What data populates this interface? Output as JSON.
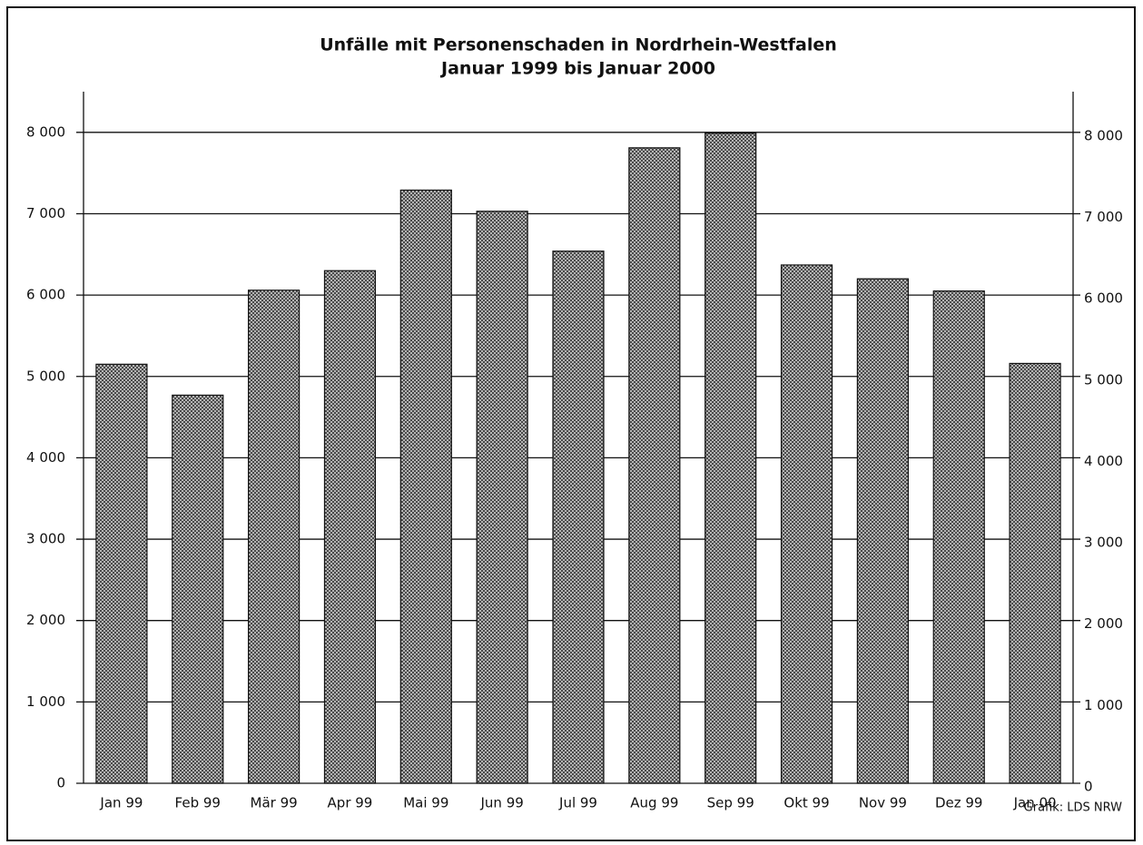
{
  "chart_data": {
    "type": "bar",
    "title": "Unfälle mit Personenschaden in Nordrhein-Westfalen",
    "subtitle": "Januar 1999 bis Januar 2000",
    "categories": [
      "Jan 99",
      "Feb 99",
      "Mär 99",
      "Apr 99",
      "Mai 99",
      "Jun 99",
      "Jul 99",
      "Aug 99",
      "Sep 99",
      "Okt 99",
      "Nov 99",
      "Dez 99",
      "Jan 00"
    ],
    "values": [
      5150,
      4770,
      6060,
      6300,
      7290,
      7030,
      6540,
      7810,
      7990,
      6370,
      6200,
      6050,
      5160
    ],
    "color": "#4a4a4a",
    "ylim": [
      0,
      8500
    ],
    "yticks": [
      0,
      {
        "value": 1000,
        "label": "1 000"
      },
      {
        "value": 2000,
        "label": "2 000"
      },
      {
        "value": 3000,
        "label": "3 000"
      },
      {
        "value": 4000,
        "label": "4 000"
      },
      {
        "value": 5000,
        "label": "5 000"
      },
      {
        "value": 6000,
        "label": "6 000"
      },
      {
        "value": 7000,
        "label": "7 000"
      },
      {
        "value": 8000,
        "label": "8 000"
      }
    ],
    "grid": true,
    "source": "Grafik: LDS NRW"
  }
}
